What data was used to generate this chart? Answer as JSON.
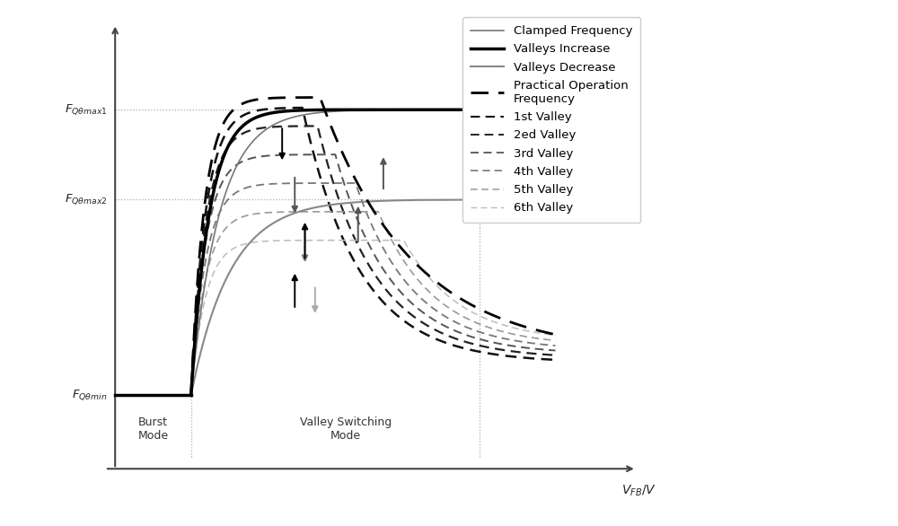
{
  "xlim": [
    -0.3,
    10.5
  ],
  "ylim": [
    -0.5,
    10.5
  ],
  "burst_x": 1.5,
  "vsw_x": 7.2,
  "fmin": 1.5,
  "fmax1": 8.5,
  "fmax2": 6.3,
  "bg": "#ffffff",
  "col_cf": "#777777",
  "col_vi": "#000000",
  "col_vd": "#888888",
  "col_pof": "#000000",
  "valley_colors": [
    "#111111",
    "#222222",
    "#555555",
    "#777777",
    "#999999",
    "#bbbbbb"
  ],
  "valley_labels": [
    "1st Valley",
    "2ed Valley",
    "3rd Valley",
    "4th Valley",
    "5th Valley",
    "6th Valley"
  ]
}
